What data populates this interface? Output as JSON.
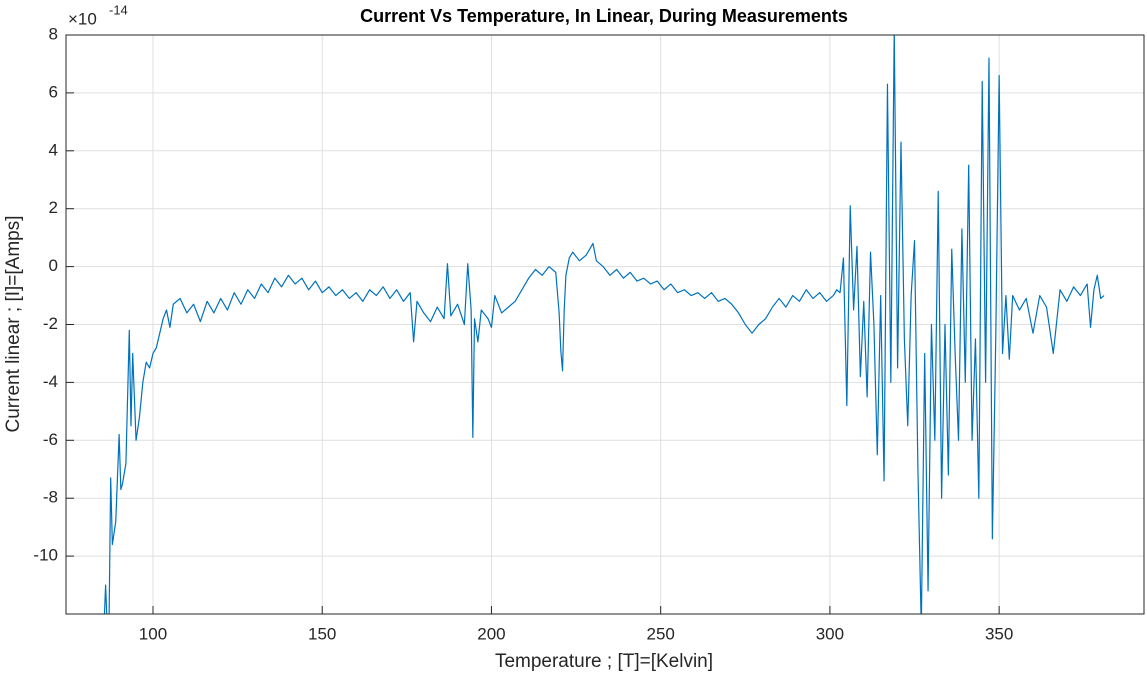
{
  "chart_data": {
    "type": "line",
    "title": "Current Vs Temperature, In Linear, During Measurements",
    "xlabel": "Temperature ; [T]=[Kelvin]",
    "ylabel": "Current linear ; [I]=[Amps]",
    "y_multiplier": "×10",
    "y_exponent": "-14",
    "xlim": [
      74.3,
      392.8
    ],
    "ylim": [
      -12,
      8
    ],
    "xticks": [
      100,
      150,
      200,
      250,
      300,
      350
    ],
    "yticks": [
      -10,
      -8,
      -6,
      -4,
      -2,
      0,
      2,
      4,
      6,
      8
    ],
    "grid": true,
    "color": "#0072bd",
    "x": [
      85.5,
      86,
      86.5,
      87,
      87.5,
      88,
      89,
      90,
      90.5,
      91,
      92,
      93,
      93.5,
      94,
      95,
      96,
      97,
      98,
      99,
      100,
      101,
      102,
      103,
      104,
      105,
      106,
      108,
      110,
      112,
      114,
      116,
      118,
      120,
      122,
      124,
      126,
      128,
      130,
      132,
      134,
      136,
      138,
      140,
      142,
      144,
      146,
      148,
      150,
      152,
      154,
      156,
      158,
      160,
      162,
      164,
      166,
      168,
      170,
      172,
      174,
      176,
      177,
      178,
      180,
      182,
      184,
      186,
      187,
      188,
      190,
      192,
      193,
      194,
      194.5,
      195,
      196,
      197,
      199,
      200,
      201,
      203,
      205,
      207,
      209,
      211,
      213,
      215,
      217,
      219,
      220,
      220.5,
      221,
      221.5,
      222,
      223,
      224,
      226,
      228,
      230,
      231,
      233,
      235,
      237,
      239,
      241,
      243,
      245,
      247,
      249,
      251,
      253,
      255,
      257,
      259,
      261,
      263,
      265,
      267,
      269,
      271,
      273,
      275,
      277,
      279,
      281,
      283,
      285,
      287,
      289,
      291,
      293,
      295,
      297,
      299,
      301,
      302,
      303,
      304,
      305,
      306,
      307,
      308,
      309,
      310,
      311,
      312,
      313,
      314,
      315,
      316,
      317,
      318,
      319,
      320,
      321,
      322,
      323,
      324,
      325,
      326,
      327,
      328,
      329,
      330,
      331,
      332,
      333,
      334,
      335,
      336,
      337,
      338,
      339,
      340,
      341,
      342,
      343,
      344,
      345,
      346,
      347,
      348,
      349,
      350,
      351,
      352,
      353,
      354,
      356,
      358,
      360,
      362,
      364,
      366,
      368,
      370,
      372,
      374,
      376,
      377,
      378,
      379,
      380,
      381
    ],
    "values": [
      -12.5,
      -11,
      -12.5,
      -12.5,
      -7.3,
      -9.6,
      -8.8,
      -5.8,
      -7.7,
      -7.5,
      -6.8,
      -2.2,
      -5.5,
      -3.0,
      -6.0,
      -5.2,
      -4.0,
      -3.3,
      -3.5,
      -3.0,
      -2.8,
      -2.3,
      -1.8,
      -1.5,
      -2.1,
      -1.3,
      -1.1,
      -1.6,
      -1.3,
      -1.9,
      -1.2,
      -1.6,
      -1.1,
      -1.5,
      -0.9,
      -1.3,
      -0.8,
      -1.1,
      -0.6,
      -0.9,
      -0.4,
      -0.7,
      -0.3,
      -0.6,
      -0.4,
      -0.8,
      -0.5,
      -0.9,
      -0.7,
      -1.0,
      -0.8,
      -1.1,
      -0.9,
      -1.2,
      -0.8,
      -1.0,
      -0.7,
      -1.1,
      -0.8,
      -1.2,
      -0.9,
      -2.6,
      -1.2,
      -1.6,
      -1.9,
      -1.4,
      -1.8,
      0.1,
      -1.7,
      -1.3,
      -2.0,
      0.1,
      -1.5,
      -5.9,
      -1.8,
      -2.6,
      -1.5,
      -1.8,
      -2.1,
      -1.0,
      -1.6,
      -1.4,
      -1.2,
      -0.8,
      -0.4,
      -0.1,
      -0.3,
      0.0,
      -0.2,
      -1.6,
      -2.9,
      -3.6,
      -1.5,
      -0.3,
      0.3,
      0.5,
      0.2,
      0.4,
      0.8,
      0.2,
      0.0,
      -0.3,
      -0.1,
      -0.4,
      -0.2,
      -0.5,
      -0.4,
      -0.6,
      -0.5,
      -0.8,
      -0.6,
      -0.9,
      -0.8,
      -1.0,
      -0.9,
      -1.1,
      -0.9,
      -1.2,
      -1.1,
      -1.3,
      -1.6,
      -2.0,
      -2.3,
      -2.0,
      -1.8,
      -1.4,
      -1.1,
      -1.4,
      -1.0,
      -1.2,
      -0.8,
      -1.1,
      -0.9,
      -1.2,
      -1.0,
      -0.8,
      -0.9,
      0.3,
      -4.8,
      2.1,
      -1.5,
      0.7,
      -3.8,
      -1.2,
      -4.5,
      0.5,
      -2.0,
      -6.5,
      -1.0,
      -7.4,
      6.3,
      -4.0,
      8.2,
      -3.5,
      4.3,
      -2.5,
      -5.5,
      -1.0,
      0.9,
      -7.0,
      -12.5,
      -3.0,
      -11.2,
      -2.0,
      -6.0,
      2.6,
      -8.0,
      -2.0,
      -7.2,
      0.6,
      -3.0,
      -6.0,
      1.3,
      -4.0,
      3.5,
      -6.0,
      -2.5,
      -8.0,
      6.4,
      -4.0,
      7.2,
      -9.4,
      -2.5,
      6.6,
      -3.0,
      -1.0,
      -3.2,
      -1.0,
      -1.5,
      -1.1,
      -2.3,
      -1.0,
      -1.4,
      -3.0,
      -0.8,
      -1.2,
      -0.7,
      -1.0,
      -0.6,
      -2.1,
      -0.8,
      -0.3,
      -1.1,
      -1.0
    ]
  }
}
